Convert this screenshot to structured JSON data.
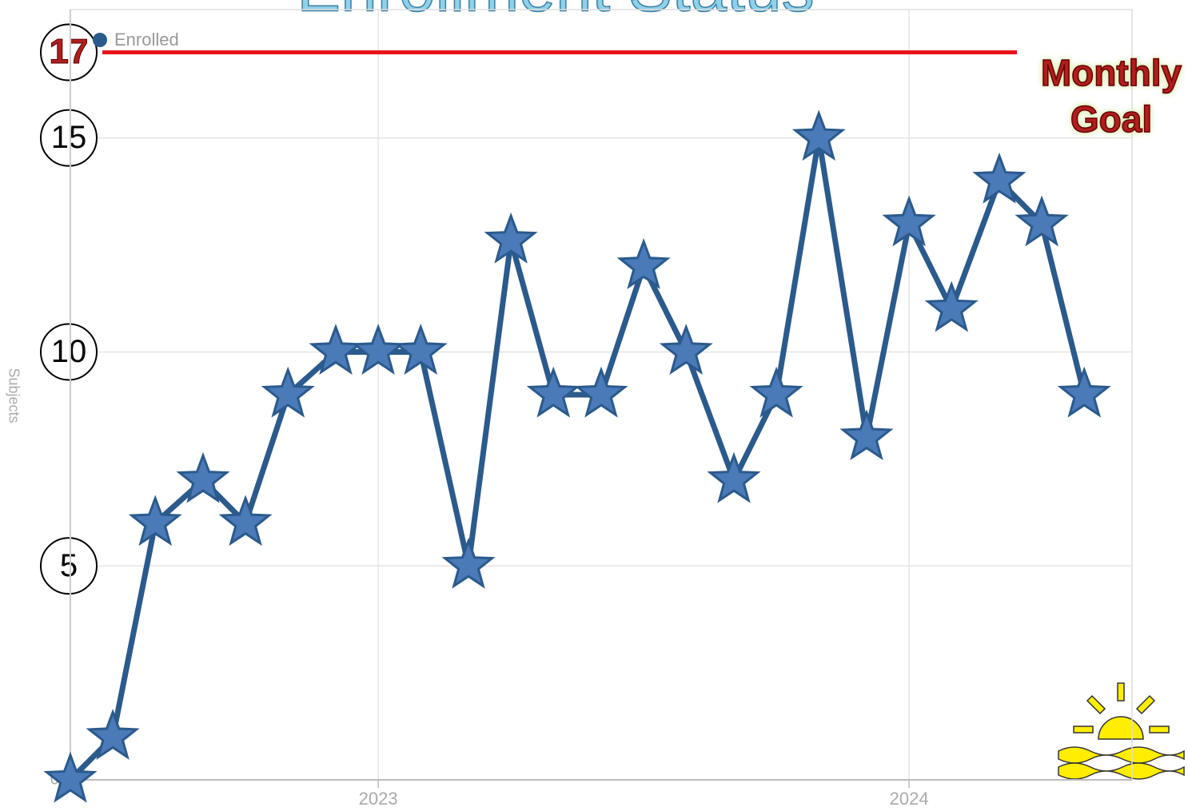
{
  "chart_data": {
    "type": "line",
    "title": "Enrollment Status",
    "y_label": "Subjects",
    "x": [
      2022.42,
      2022.5,
      2022.58,
      2022.67,
      2022.75,
      2022.83,
      2022.92,
      2023.0,
      2023.08,
      2023.17,
      2023.25,
      2023.33,
      2023.42,
      2023.5,
      2023.58,
      2023.67,
      2023.75,
      2023.83,
      2023.92,
      2024.0,
      2024.08,
      2024.17,
      2024.25,
      2024.33
    ],
    "series": [
      {
        "name": "Enrolled",
        "color": "#2b5a8c",
        "marker_color": "#4a7ab8",
        "values": [
          0,
          1,
          6,
          7,
          6,
          9,
          10,
          10,
          10,
          5,
          12.6,
          9,
          9,
          12,
          10,
          7,
          9,
          15,
          8,
          13,
          11,
          14,
          13,
          9
        ]
      }
    ],
    "xlim": [
      2022.42,
      2024.42
    ],
    "xticks": [
      2023,
      2024
    ],
    "ylim": [
      0,
      18
    ],
    "yticks": [
      0,
      5,
      10,
      15,
      17
    ],
    "goal": {
      "value": 17,
      "label": "Monthly Goal",
      "color": "#e8141b"
    },
    "grid": true,
    "legend": "top-left"
  }
}
